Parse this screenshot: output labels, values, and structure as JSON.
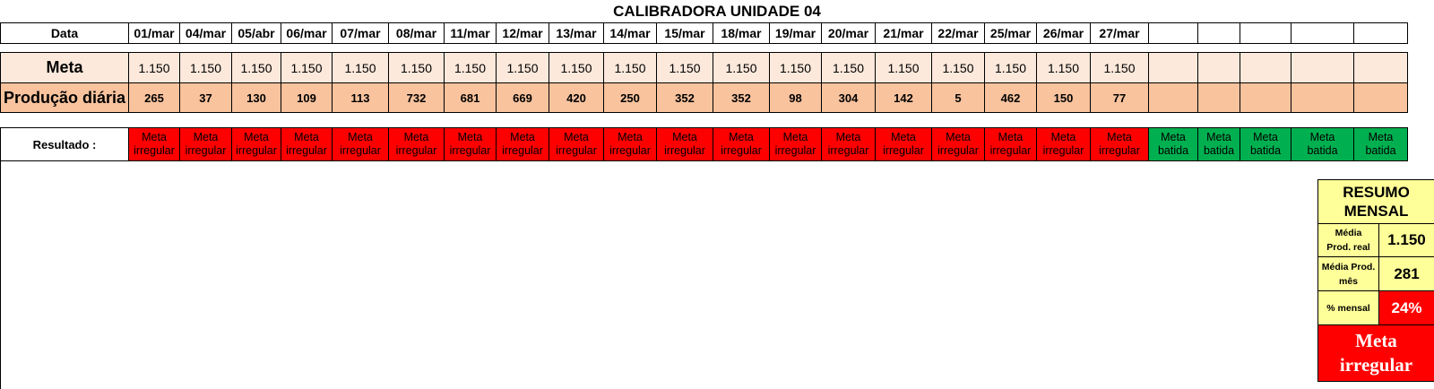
{
  "title": "CALIBRADORA UNIDADE 04",
  "labels": {
    "data": "Data",
    "meta": "Meta",
    "producao": "Produção diária",
    "resultado": "Resultado :"
  },
  "days": [
    {
      "date": "01/mar",
      "meta": "1.150",
      "prod": "265",
      "res1": "Meta",
      "res2": "irregular"
    },
    {
      "date": "04/mar",
      "meta": "1.150",
      "prod": "37",
      "res1": "Meta",
      "res2": "irregular"
    },
    {
      "date": "05/abr",
      "meta": "1.150",
      "prod": "130",
      "res1": "Meta",
      "res2": "irregular"
    },
    {
      "date": "06/mar",
      "meta": "1.150",
      "prod": "109",
      "res1": "Meta",
      "res2": "irregular"
    },
    {
      "date": "07/mar",
      "meta": "1.150",
      "prod": "113",
      "res1": "Meta",
      "res2": "irregular"
    },
    {
      "date": "08/mar",
      "meta": "1.150",
      "prod": "732",
      "res1": "Meta",
      "res2": "irregular"
    },
    {
      "date": "11/mar",
      "meta": "1.150",
      "prod": "681",
      "res1": "Meta",
      "res2": "irregular"
    },
    {
      "date": "12/mar",
      "meta": "1.150",
      "prod": "669",
      "res1": "Meta",
      "res2": "irregular"
    },
    {
      "date": "13/mar",
      "meta": "1.150",
      "prod": "420",
      "res1": "Meta",
      "res2": "irregular"
    },
    {
      "date": "14/mar",
      "meta": "1.150",
      "prod": "250",
      "res1": "Meta",
      "res2": "irregular"
    },
    {
      "date": "15/mar",
      "meta": "1.150",
      "prod": "352",
      "res1": "Meta",
      "res2": "irregular"
    },
    {
      "date": "18/mar",
      "meta": "1.150",
      "prod": "352",
      "res1": "Meta",
      "res2": "irregular"
    },
    {
      "date": "19/mar",
      "meta": "1.150",
      "prod": "98",
      "res1": "Meta",
      "res2": "irregular"
    },
    {
      "date": "20/mar",
      "meta": "1.150",
      "prod": "304",
      "res1": "Meta",
      "res2": "irregular"
    },
    {
      "date": "21/mar",
      "meta": "1.150",
      "prod": "142",
      "res1": "Meta",
      "res2": "irregular"
    },
    {
      "date": "22/mar",
      "meta": "1.150",
      "prod": "5",
      "res1": "Meta",
      "res2": "irregular"
    },
    {
      "date": "25/mar",
      "meta": "1.150",
      "prod": "462",
      "res1": "Meta",
      "res2": "irregular"
    },
    {
      "date": "26/mar",
      "meta": "1.150",
      "prod": "150",
      "res1": "Meta",
      "res2": "irregular"
    },
    {
      "date": "27/mar",
      "meta": "1.150",
      "prod": "77",
      "res1": "Meta",
      "res2": "irregular"
    },
    {
      "date": "",
      "meta": "",
      "prod": "",
      "res1": "Meta",
      "res2": "batida"
    },
    {
      "date": "",
      "meta": "",
      "prod": "",
      "res1": "Meta",
      "res2": "batida"
    },
    {
      "date": "",
      "meta": "",
      "prod": "",
      "res1": "Meta",
      "res2": "batida"
    },
    {
      "date": "",
      "meta": "",
      "prod": "",
      "res1": "Meta",
      "res2": "batida"
    },
    {
      "date": "",
      "meta": "",
      "prod": "",
      "res1": "Meta",
      "res2": "batida"
    }
  ],
  "summary": {
    "title_line1": "RESUMO",
    "title_line2": "MENSAL",
    "media_real_label_1": "Média",
    "media_real_label_2": "Prod. real",
    "media_real_value": "1.150",
    "media_mes_label_1": "Média Prod.",
    "media_mes_label_2": "mês",
    "media_mes_value": "281",
    "pct_label": "% mensal",
    "pct_value": "24%",
    "status_line1": "Meta",
    "status_line2": "irregular"
  },
  "colors": {
    "irregular": "#ff0000",
    "batida": "#00b050",
    "meta_row": "#fde9dc",
    "prod_row": "#f9c39e",
    "summary_bg": "#ffff99"
  }
}
